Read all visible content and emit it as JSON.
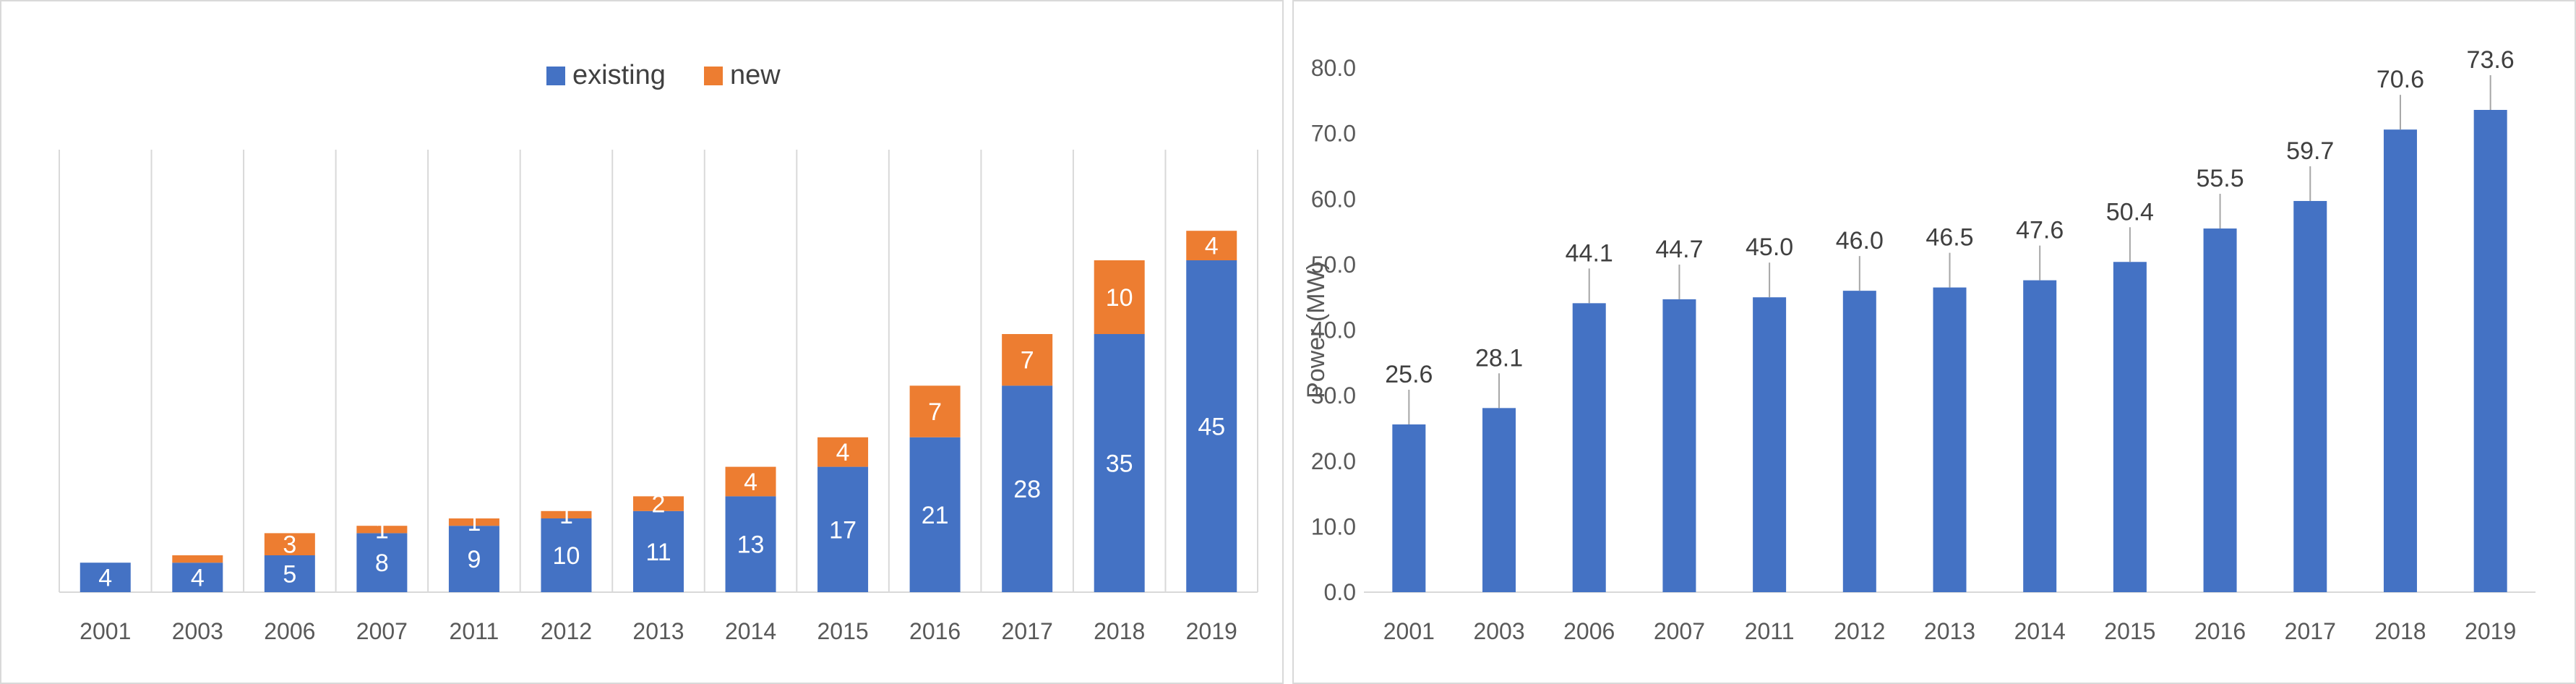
{
  "colors": {
    "existing": "#4472C4",
    "new": "#ED7D31",
    "gridline": "#D9D9D9",
    "tick_text": "#595959",
    "label_dark": "#404040",
    "leader_line": "#A6A6A6"
  },
  "chart_data": [
    {
      "type": "bar",
      "stacked": true,
      "title": "",
      "xlabel": "",
      "ylabel": "",
      "grid": "vertical",
      "legend": "top-center",
      "ylim": [
        0,
        60
      ],
      "categories": [
        "2001",
        "2003",
        "2006",
        "2007",
        "2011",
        "2012",
        "2013",
        "2014",
        "2015",
        "2016",
        "2017",
        "2018",
        "2019"
      ],
      "series": [
        {
          "name": "existing",
          "values": [
            4,
            4,
            5,
            8,
            9,
            10,
            11,
            13,
            17,
            21,
            28,
            35,
            45
          ]
        },
        {
          "name": "new",
          "values": [
            0,
            1,
            3,
            1,
            1,
            1,
            2,
            4,
            4,
            7,
            7,
            10,
            4
          ]
        }
      ],
      "data_labels": {
        "existing": [
          "4",
          "4",
          "5",
          "8",
          "9",
          "10",
          "11",
          "13",
          "17",
          "21",
          "28",
          "35",
          "45"
        ],
        "new": [
          "",
          "",
          "3",
          "1",
          "1",
          "1",
          "2",
          "4",
          "4",
          "7",
          "7",
          "10",
          "4"
        ]
      }
    },
    {
      "type": "bar",
      "title": "",
      "xlabel": "",
      "ylabel": "Power (MW)",
      "grid": "none",
      "legend": "none",
      "ylim": [
        0,
        80
      ],
      "yticks": [
        "0.0",
        "10.0",
        "20.0",
        "30.0",
        "40.0",
        "50.0",
        "60.0",
        "70.0",
        "80.0"
      ],
      "categories": [
        "2001",
        "2003",
        "2006",
        "2007",
        "2011",
        "2012",
        "2013",
        "2014",
        "2015",
        "2016",
        "2017",
        "2018",
        "2019"
      ],
      "series": [
        {
          "name": "Power (MW)",
          "values": [
            25.6,
            28.1,
            44.1,
            44.7,
            45.0,
            46.0,
            46.5,
            47.6,
            50.4,
            55.5,
            59.7,
            70.6,
            73.6
          ]
        }
      ],
      "data_labels": [
        "25.6",
        "28.1",
        "44.1",
        "44.7",
        "45.0",
        "46.0",
        "46.5",
        "47.6",
        "50.4",
        "55.5",
        "59.7",
        "70.6",
        "73.6"
      ]
    }
  ]
}
